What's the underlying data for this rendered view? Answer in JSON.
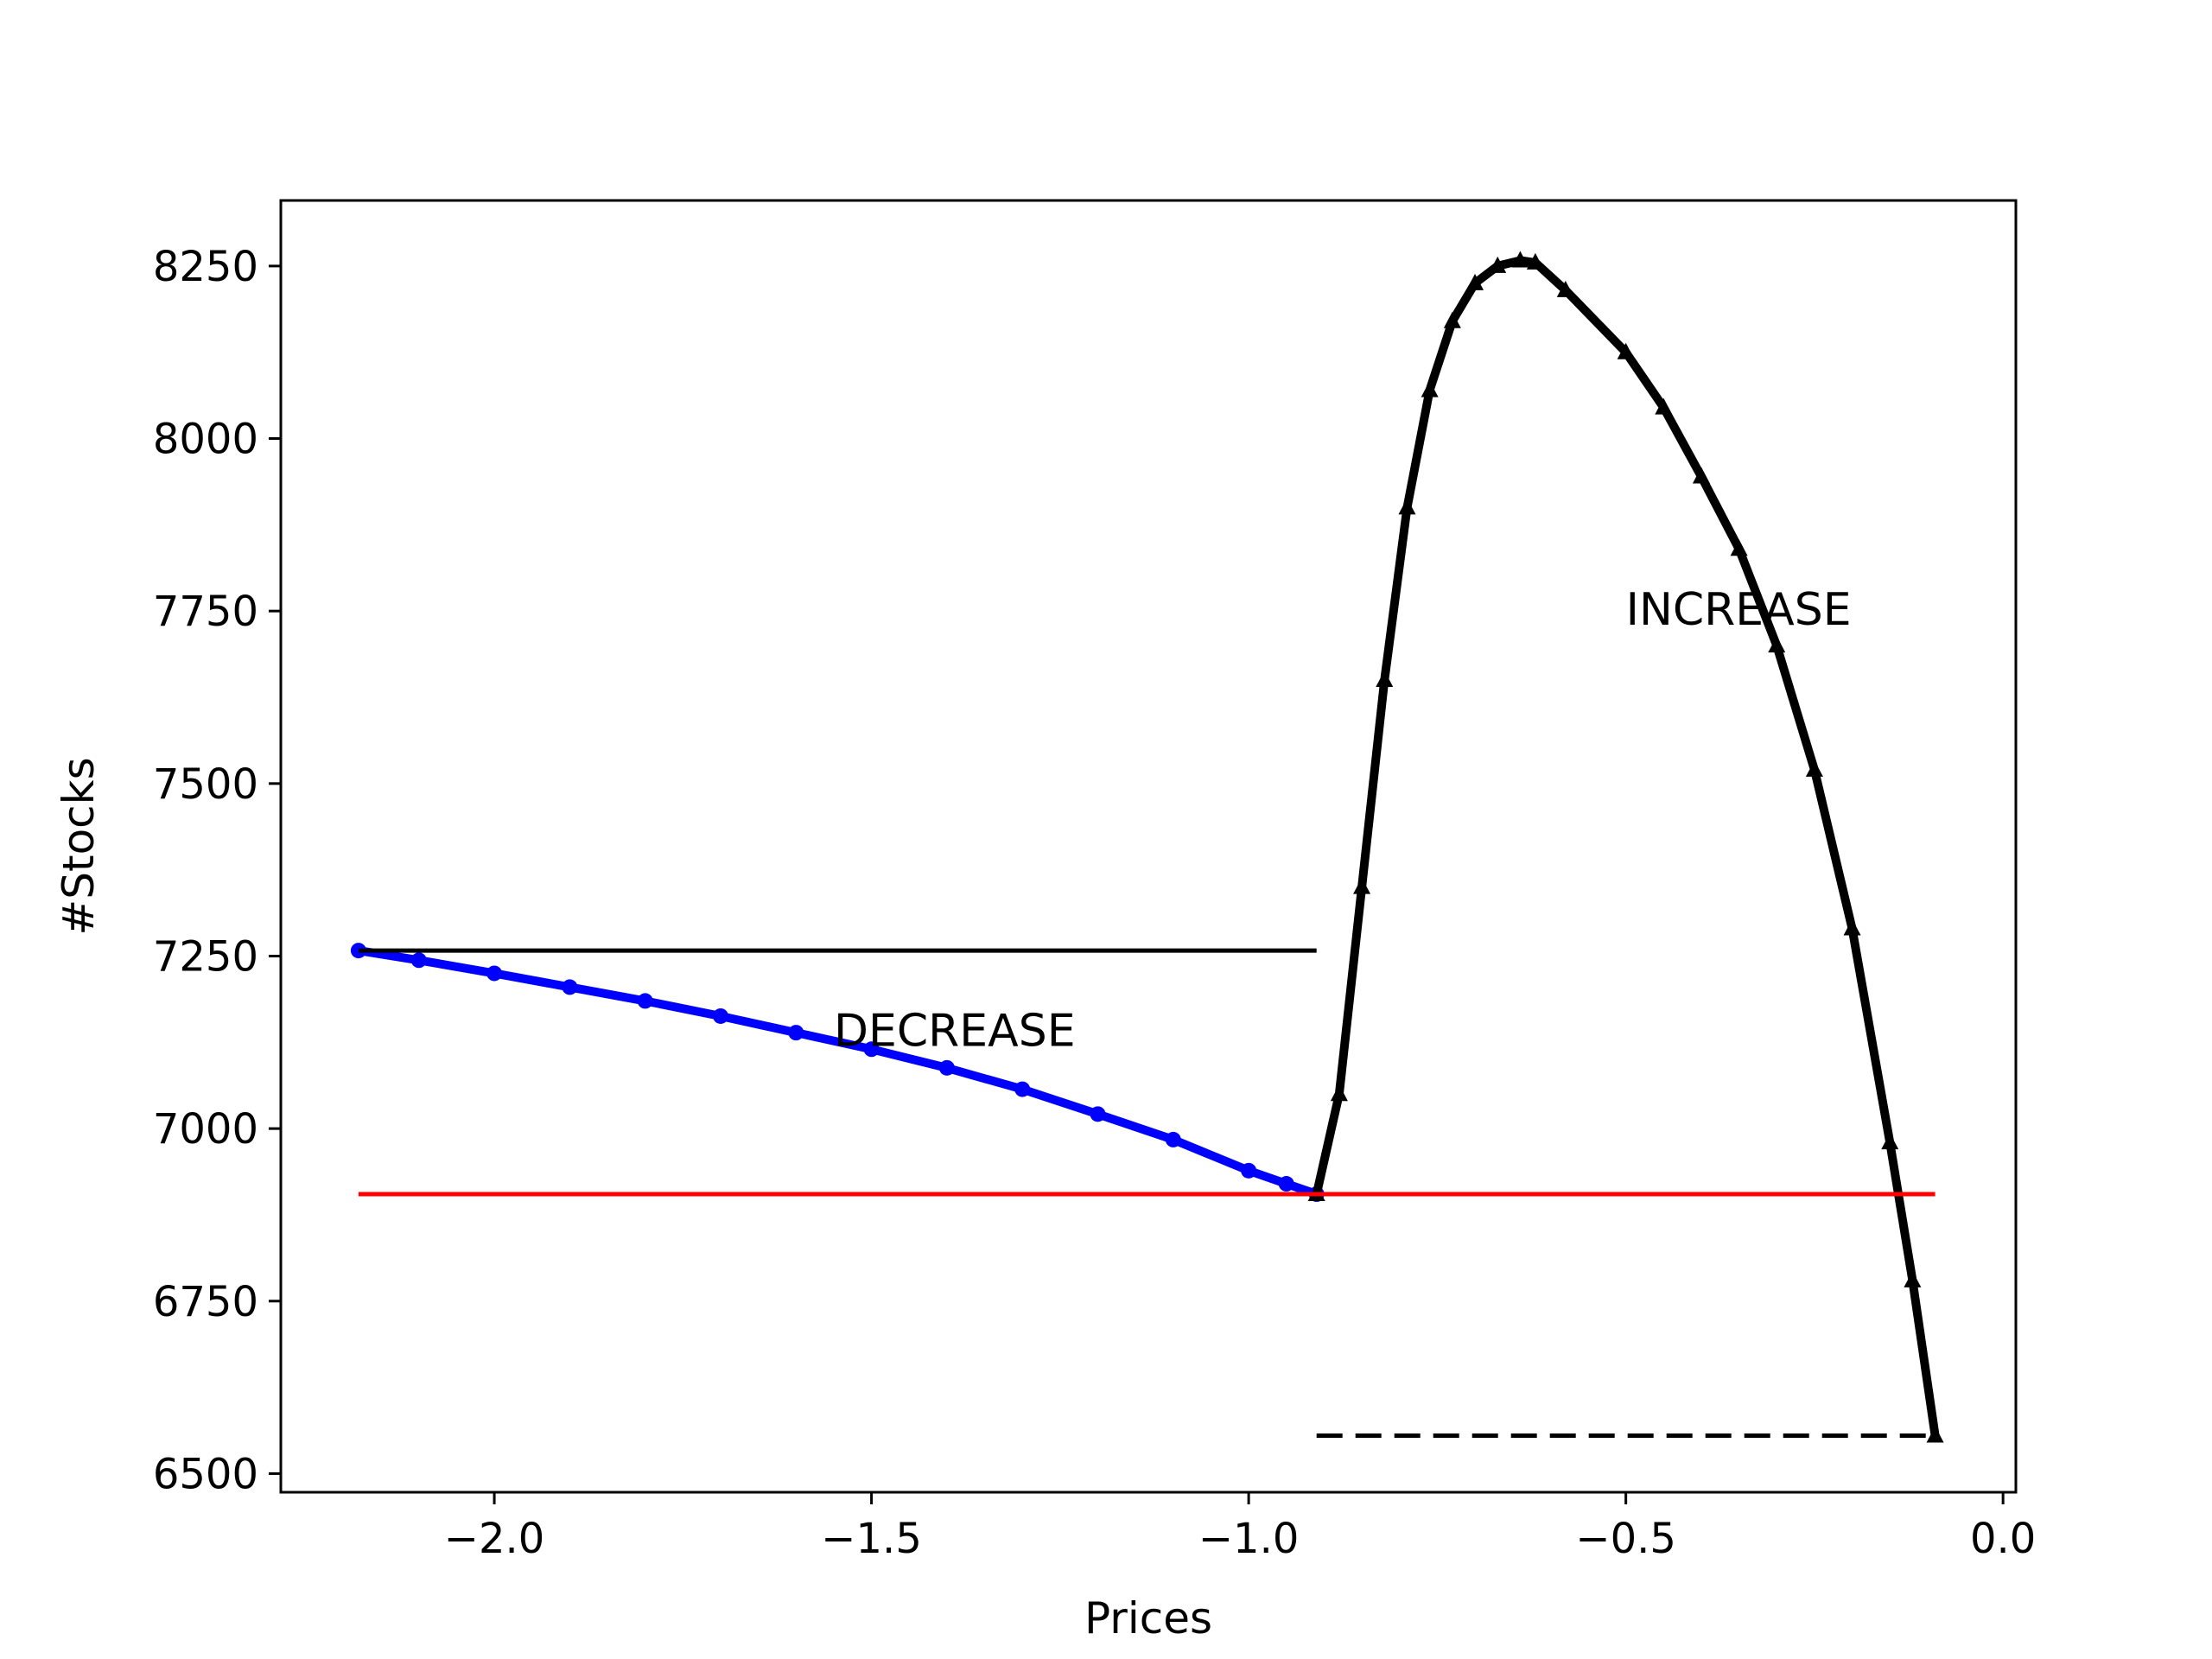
{
  "chart_data": {
    "type": "line",
    "title": "",
    "xlabel": "Prices",
    "ylabel": "#Stocks",
    "xlim": [
      -2.283,
      0.017
    ],
    "ylim": [
      6473,
      8345
    ],
    "grid": false,
    "x_ticks": [
      -2.0,
      -1.5,
      -1.0,
      -0.5,
      0.0
    ],
    "x_tick_labels": [
      "−2.0",
      "−1.5",
      "−1.0",
      "−0.5",
      "0.0"
    ],
    "y_ticks": [
      6500,
      6750,
      7000,
      7250,
      7500,
      7750,
      8000,
      8250
    ],
    "y_tick_labels": [
      "6500",
      "6750",
      "7000",
      "7250",
      "7500",
      "7750",
      "8000",
      "8250"
    ],
    "series": [
      {
        "role": "decrease-curve",
        "color": "#0000ff",
        "marker": "circle",
        "x": [
          -2.18,
          -2.1,
          -2.0,
          -1.9,
          -1.8,
          -1.7,
          -1.6,
          -1.5,
          -1.4,
          -1.3,
          -1.2,
          -1.1,
          -1.0,
          -0.95,
          -0.91
        ],
        "y": [
          7258,
          7244,
          7225,
          7205,
          7185,
          7163,
          7139,
          7115,
          7088,
          7057,
          7021,
          6984,
          6939,
          6920,
          6905
        ]
      },
      {
        "role": "increase-curve",
        "color": "#000000",
        "marker": "triangle",
        "x": [
          -0.91,
          -0.88,
          -0.85,
          -0.82,
          -0.79,
          -0.76,
          -0.73,
          -0.7,
          -0.67,
          -0.64,
          -0.62,
          -0.58,
          -0.5,
          -0.45,
          -0.4,
          -0.35,
          -0.3,
          -0.25,
          -0.2,
          -0.15,
          -0.12,
          -0.09
        ],
        "y": [
          6905,
          7050,
          7350,
          7650,
          7900,
          8070,
          8170,
          8225,
          8250,
          8258,
          8255,
          8215,
          8125,
          8045,
          7945,
          7840,
          7700,
          7520,
          7290,
          6980,
          6780,
          6555
        ]
      },
      {
        "role": "reference-solid-black",
        "color": "#000000",
        "style": "solid",
        "x": [
          -2.18,
          -0.91
        ],
        "y": [
          7258,
          7258
        ]
      },
      {
        "role": "reference-red",
        "color": "#ff0000",
        "style": "solid",
        "x": [
          -2.18,
          -0.09
        ],
        "y": [
          6905,
          6905
        ]
      },
      {
        "role": "reference-dashed-black",
        "color": "#000000",
        "style": "dashed",
        "x": [
          -0.91,
          -0.09
        ],
        "y": [
          6555,
          6555
        ]
      }
    ],
    "annotations": [
      {
        "text": "DECREASE",
        "x": -1.55,
        "y": 7120
      },
      {
        "text": "INCREASE",
        "x": -0.5,
        "y": 7730
      }
    ]
  }
}
